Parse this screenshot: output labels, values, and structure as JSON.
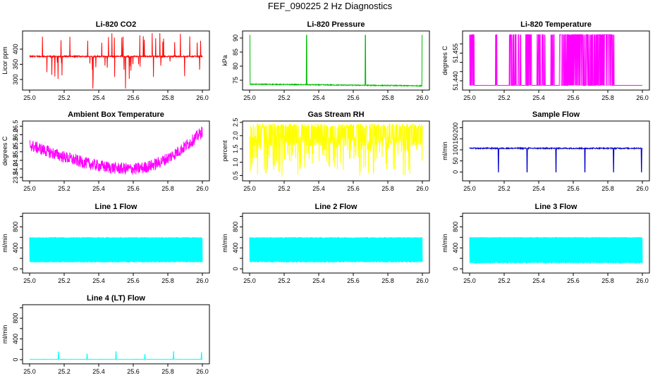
{
  "figure_title": "FEF_090225  2 Hz Diagnostics",
  "chart_data": [
    {
      "id": "co2",
      "type": "line",
      "title": "Li-820 CO2",
      "ylabel": "Licor ppm",
      "color": "#ff0000",
      "xlim": [
        25.0,
        26.0
      ],
      "ylim": [
        265,
        460
      ],
      "yticks": [
        "300",
        "350",
        "400"
      ],
      "ytick_values": [
        300,
        350,
        400
      ],
      "xticks": [
        "25.0",
        "25.2",
        "25.4",
        "25.6",
        "25.8",
        "26.0"
      ],
      "pattern": "baseline 377 ppm with frequent upward spikes to ~455 and downward dips to ~270"
    },
    {
      "id": "pressure",
      "type": "line",
      "title": "Li-820 Pressure",
      "ylabel": "kPa",
      "color": "#00bb00",
      "xlim": [
        25.0,
        26.0
      ],
      "ylim": [
        71.5,
        92.5
      ],
      "yticks": [
        "75",
        "80",
        "85",
        "90"
      ],
      "ytick_values": [
        75,
        80,
        85,
        90
      ],
      "xticks": [
        "25.0",
        "25.2",
        "25.4",
        "25.6",
        "25.8",
        "26.0"
      ],
      "pattern": "baseline ~73.5 kPa with spikes to ~91 at 25.0, 25.33, 25.67, 26.0"
    },
    {
      "id": "temp820",
      "type": "line",
      "title": "Li-820 Temperature",
      "ylabel": "degrees C",
      "color": "#ff00ff",
      "xlim": [
        25.0,
        26.0
      ],
      "ylim": [
        51.435,
        51.467
      ],
      "yticks": [
        "51.440",
        "51.455"
      ],
      "ytick_values": [
        51.44,
        51.455
      ],
      "yticks_minor": [
        51.445,
        51.45,
        51.46
      ],
      "xticks": [
        "25.0",
        "25.2",
        "25.4",
        "25.6",
        "25.8",
        "26.0"
      ],
      "pattern": "switches between 51.4375 and 51.465 (quantized)"
    },
    {
      "id": "ambient",
      "type": "line",
      "title": "Ambient Box Temperature",
      "ylabel": "degrees C",
      "color": "#ff00ff",
      "xlim": [
        25.0,
        26.0
      ],
      "ylim": [
        23.3,
        26.8
      ],
      "yticks": [
        "23.5",
        "24.0",
        "24.5",
        "25.0",
        "25.5",
        "26.0",
        "26.5"
      ],
      "ytick_values": [
        23.5,
        24,
        24.5,
        25,
        25.5,
        26,
        26.5
      ],
      "xticks": [
        "25.0",
        "25.2",
        "25.4",
        "25.6",
        "25.8",
        "26.0"
      ],
      "pattern": "decreases from ~25.4 to ~24.0 at 25.6 then rises to ~26.2 by 26.0, noisy band ~0.6"
    },
    {
      "id": "rh",
      "type": "line",
      "title": "Gas Stream RH",
      "ylabel": "percent",
      "color": "#ffff00",
      "xlim": [
        25.0,
        26.0
      ],
      "ylim": [
        0.3,
        2.55
      ],
      "yticks": [
        "0.5",
        "1.0",
        "1.5",
        "2.0",
        "2.5"
      ],
      "ytick_values": [
        0.5,
        1,
        1.5,
        2,
        2.5
      ],
      "xticks": [
        "25.0",
        "25.2",
        "25.4",
        "25.6",
        "25.8",
        "26.0"
      ],
      "pattern": "dense band 1.6-2.4 percent with frequent drops toward 0.5"
    },
    {
      "id": "sample",
      "type": "line",
      "title": "Sample Flow",
      "ylabel": "ml/min",
      "color": "#0000cc",
      "xlim": [
        25.0,
        26.0
      ],
      "ylim": [
        -40,
        230
      ],
      "yticks": [
        "0",
        "50",
        "100",
        "150",
        "200"
      ],
      "ytick_values": [
        0,
        50,
        100,
        150,
        200
      ],
      "xticks": [
        "25.0",
        "25.2",
        "25.4",
        "25.6",
        "25.8",
        "26.0"
      ],
      "pattern": "steady ~108 ml/min with drops to 0 near 25.17, 25.33, 25.5, 25.67, 25.83, 26.0"
    },
    {
      "id": "line1",
      "type": "line",
      "title": "Line 1 Flow",
      "ylabel": "ml/min",
      "color": "#00ffff",
      "xlim": [
        25.0,
        26.0
      ],
      "ylim": [
        -80,
        1060
      ],
      "yticks": [
        "0",
        "400",
        "800"
      ],
      "ytick_values": [
        0,
        400,
        800
      ],
      "yticks_minor": [
        200,
        600,
        1000
      ],
      "xticks": [
        "25.0",
        "25.2",
        "25.4",
        "25.6",
        "25.8",
        "26.0"
      ],
      "pattern": "oscillates 120-600 ml/min (solid band) with brief gaps"
    },
    {
      "id": "line2",
      "type": "line",
      "title": "Line 2 Flow",
      "ylabel": "ml/min",
      "color": "#00ffff",
      "xlim": [
        25.0,
        26.0
      ],
      "ylim": [
        -80,
        1060
      ],
      "yticks": [
        "0",
        "400",
        "800"
      ],
      "ytick_values": [
        0,
        400,
        800
      ],
      "yticks_minor": [
        200,
        600,
        1000
      ],
      "xticks": [
        "25.0",
        "25.2",
        "25.4",
        "25.6",
        "25.8",
        "26.0"
      ],
      "pattern": "oscillates 120-590 ml/min (solid band) with gaps"
    },
    {
      "id": "line3",
      "type": "line",
      "title": "Line 3 Flow",
      "ylabel": "ml/min",
      "color": "#00ffff",
      "xlim": [
        25.0,
        26.0
      ],
      "ylim": [
        -80,
        1060
      ],
      "yticks": [
        "0",
        "400",
        "800"
      ],
      "ytick_values": [
        0,
        400,
        800
      ],
      "yticks_minor": [
        200,
        600,
        1000
      ],
      "xticks": [
        "25.0",
        "25.2",
        "25.4",
        "25.6",
        "25.8",
        "26.0"
      ],
      "pattern": "oscillates 100-600 ml/min (solid band) with gaps"
    },
    {
      "id": "line4",
      "type": "line",
      "title": "Line 4 (LT) Flow",
      "ylabel": "ml/min",
      "color": "#00ffff",
      "xlim": [
        25.0,
        26.0
      ],
      "ylim": [
        -80,
        1060
      ],
      "yticks": [
        "0",
        "400",
        "800"
      ],
      "ytick_values": [
        0,
        400,
        800
      ],
      "yticks_minor": [
        200,
        600,
        1000
      ],
      "xticks": [
        "25.0",
        "25.2",
        "25.4",
        "25.6",
        "25.8",
        "26.0"
      ],
      "pattern": "near 0 ml/min with small spikes to ~150 at 25.17, 25.33, 25.5, 25.67, 25.83, 26.0"
    }
  ]
}
